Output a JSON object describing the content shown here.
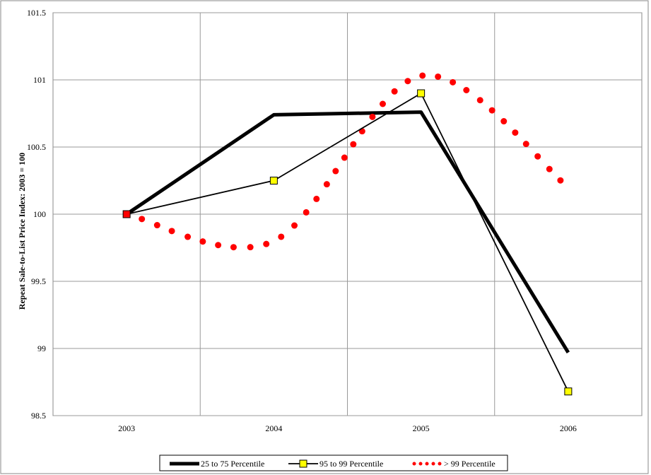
{
  "chart_data": {
    "type": "line",
    "categories": [
      "2003",
      "2004",
      "2005",
      "2006"
    ],
    "ylabel": "Repeat Sale-to-List Price Index: 2003 = 100",
    "ylim": [
      98.5,
      101.5
    ],
    "y_ticks": [
      "98.5",
      "99",
      "99.5",
      "100",
      "100.5",
      "101",
      "101.5"
    ],
    "grid": "on",
    "legend_placement": "bottom",
    "series": [
      {
        "name": "25 to 75 Percentile",
        "values": [
          100,
          100.74,
          100.76,
          98.97
        ],
        "color": "#000000",
        "style": "thick-solid"
      },
      {
        "name": "95 to 99 Percentile",
        "values": [
          100,
          100.25,
          100.9,
          98.68
        ],
        "color": "#000000",
        "marker_color": "#ffff00",
        "style": "thin-solid-square-marker"
      },
      {
        "name": "> 99 Percentile",
        "values": [
          100,
          99.8,
          101.03,
          100.2
        ],
        "color": "#ff0000",
        "style": "dotted"
      }
    ]
  }
}
